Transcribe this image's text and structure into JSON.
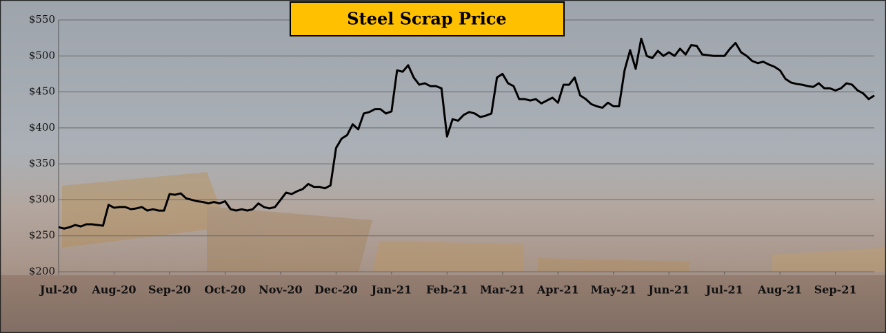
{
  "chart_data": {
    "type": "line",
    "title": "Steel Scrap Price",
    "categories": [
      "Jul-20",
      null,
      null,
      null,
      null,
      null,
      null,
      null,
      null,
      null,
      "Aug-20",
      null,
      null,
      null,
      null,
      null,
      null,
      null,
      null,
      null,
      "Sep-20",
      null,
      null,
      null,
      null,
      null,
      null,
      null,
      null,
      null,
      "Oct-20",
      null,
      null,
      null,
      null,
      null,
      null,
      null,
      null,
      null,
      "Nov-20",
      null,
      null,
      null,
      null,
      null,
      null,
      null,
      null,
      null,
      "Dec-20",
      null,
      null,
      null,
      null,
      null,
      null,
      null,
      null,
      null,
      "Jan-21",
      null,
      null,
      null,
      null,
      null,
      null,
      null,
      null,
      null,
      "Feb-21",
      null,
      null,
      null,
      null,
      null,
      null,
      null,
      null,
      null,
      "Mar-21",
      null,
      null,
      null,
      null,
      null,
      null,
      null,
      null,
      null,
      "Apr-21",
      null,
      null,
      null,
      null,
      null,
      null,
      null,
      null,
      null,
      "May-21",
      null,
      null,
      null,
      null,
      null,
      null,
      null,
      null,
      null,
      "Jun-21",
      null,
      null,
      null,
      null,
      null,
      null,
      null,
      null,
      null,
      "Jul-21",
      null,
      null,
      null,
      null,
      null,
      null,
      null,
      null,
      null,
      "Aug-21",
      null,
      null,
      null,
      null,
      null,
      null,
      null,
      null,
      null,
      "Sep-21",
      null,
      null,
      null,
      null,
      null,
      null,
      null
    ],
    "values": [
      262,
      260,
      262,
      265,
      263,
      266,
      266,
      265,
      264,
      293,
      289,
      290,
      290,
      287,
      288,
      290,
      285,
      287,
      285,
      285,
      308,
      307,
      309,
      302,
      300,
      298,
      297,
      295,
      297,
      295,
      298,
      287,
      285,
      287,
      285,
      287,
      295,
      290,
      288,
      290,
      300,
      310,
      308,
      312,
      315,
      322,
      318,
      318,
      316,
      320,
      372,
      385,
      390,
      405,
      398,
      420,
      422,
      426,
      426,
      420,
      423,
      480,
      478,
      487,
      470,
      460,
      462,
      458,
      458,
      455,
      388,
      412,
      410,
      418,
      422,
      420,
      415,
      417,
      420,
      470,
      475,
      462,
      458,
      440,
      440,
      438,
      440,
      434,
      438,
      442,
      435,
      460,
      460,
      470,
      445,
      440,
      433,
      430,
      428,
      435,
      430,
      430,
      480,
      508,
      482,
      524,
      500,
      497,
      507,
      500,
      505,
      500,
      510,
      502,
      515,
      514,
      502,
      501,
      500,
      500,
      500,
      510,
      518,
      505,
      500,
      493,
      490,
      492,
      488,
      485,
      480,
      468,
      463,
      461,
      460,
      458,
      457,
      462,
      455,
      455,
      452,
      455,
      462,
      460,
      452,
      448,
      440,
      445
    ],
    "color": "#000000",
    "ylim": [
      200,
      550
    ],
    "yticks": [
      {
        "value": 200,
        "label": "$200"
      },
      {
        "value": 250,
        "label": "$250"
      },
      {
        "value": 300,
        "label": "$300"
      },
      {
        "value": 350,
        "label": "$350"
      },
      {
        "value": 400,
        "label": "$400"
      },
      {
        "value": 450,
        "label": "$450"
      },
      {
        "value": 500,
        "label": "$500"
      },
      {
        "value": 550,
        "label": "$550"
      }
    ],
    "grid": true
  }
}
